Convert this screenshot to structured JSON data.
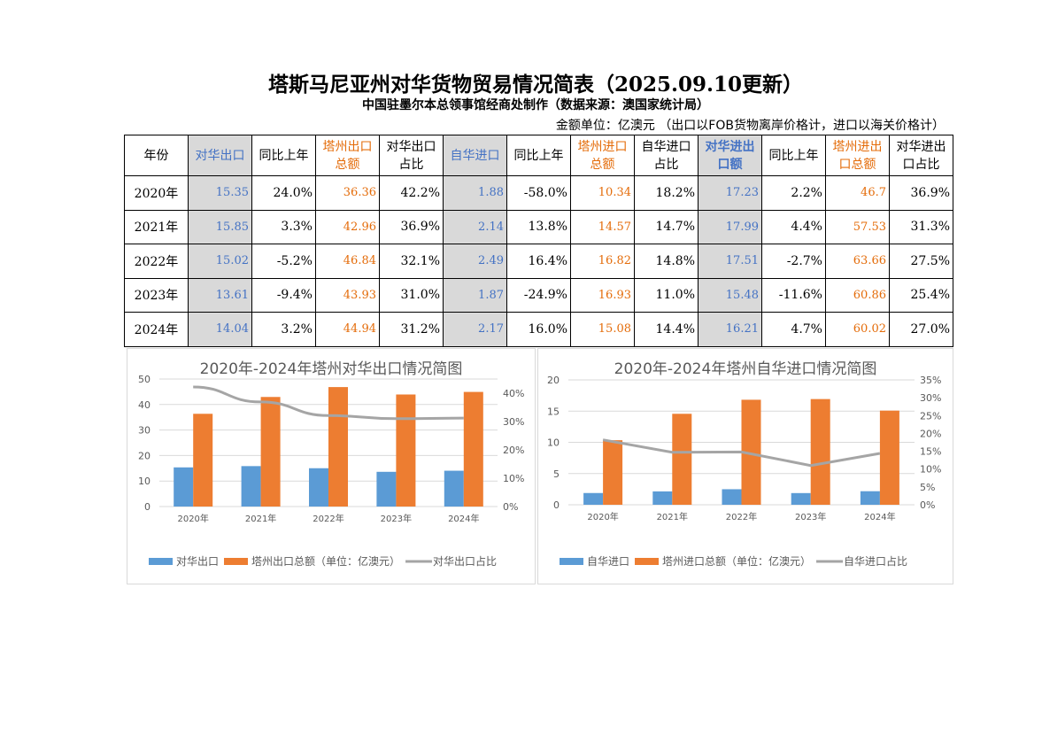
{
  "title": "塔斯马尼亚州对华货物贸易情况简表（2025.09.10更新）",
  "subtitle": "中国驻墨尔本总领事馆经商处制作（数据来源：澳国家统计局）",
  "unit_note": "金额单位：亿澳元 （出口以FOB货物离岸价格计，进口以海关价格计）",
  "table": {
    "headers": [
      "年份",
      "对华出口",
      "同比上年",
      "塔州出口总额",
      "对华出口占比",
      "自华进口",
      "同比上年",
      "塔州进口总额",
      "自华进口占比",
      "对华进出口额",
      "同比上年",
      "塔州进出口总额",
      "对华进出口占比"
    ],
    "rows": [
      [
        "2020年",
        "15.35",
        "24.0%",
        "36.36",
        "42.2%",
        "1.88",
        "-58.0%",
        "10.34",
        "18.2%",
        "17.23",
        "2.2%",
        "46.7",
        "36.9%"
      ],
      [
        "2021年",
        "15.85",
        "3.3%",
        "42.96",
        "36.9%",
        "2.14",
        "13.8%",
        "14.57",
        "14.7%",
        "17.99",
        "4.4%",
        "57.53",
        "31.3%"
      ],
      [
        "2022年",
        "15.02",
        "-5.2%",
        "46.84",
        "32.1%",
        "2.49",
        "16.4%",
        "16.82",
        "14.8%",
        "17.51",
        "-2.7%",
        "63.66",
        "27.5%"
      ],
      [
        "2023年",
        "13.61",
        "-9.4%",
        "43.93",
        "31.0%",
        "1.87",
        "-24.9%",
        "16.93",
        "11.0%",
        "15.48",
        "-11.6%",
        "60.86",
        "25.4%"
      ],
      [
        "2024年",
        "14.04",
        "3.2%",
        "44.94",
        "31.2%",
        "2.17",
        "16.0%",
        "15.08",
        "14.4%",
        "16.21",
        "4.7%",
        "60.02",
        "27.0%"
      ]
    ]
  },
  "colors": {
    "blue": "#5b9bd5",
    "orange": "#ed7d31",
    "gray": "#a5a5a5",
    "header_blue": "#4472c4",
    "header_orange": "#e46c0a",
    "shade": "#d9d9d9"
  },
  "chart_data": [
    {
      "type": "bar",
      "title": "2020年-2024年塔州对华出口情况简图",
      "categories": [
        "2020年",
        "2021年",
        "2022年",
        "2023年",
        "2024年"
      ],
      "series": [
        {
          "name": "对华出口",
          "kind": "bar",
          "axis": "left",
          "values": [
            15.35,
            15.85,
            15.02,
            13.61,
            14.04
          ]
        },
        {
          "name": "塔州出口总额（单位：亿澳元）",
          "kind": "bar",
          "axis": "right-bar",
          "values": [
            36.36,
            42.96,
            46.84,
            43.93,
            44.94
          ]
        },
        {
          "name": "对华出口占比",
          "kind": "line",
          "axis": "right",
          "values": [
            42.2,
            36.9,
            32.1,
            31.0,
            31.2
          ]
        }
      ],
      "ylim": [
        0,
        50
      ],
      "yticks": [
        0,
        10,
        20,
        30,
        40,
        50
      ],
      "y2lim": [
        0,
        45
      ],
      "y2ticks": [
        "0%",
        "10%",
        "20%",
        "30%",
        "40%"
      ],
      "y2tickvals": [
        0,
        10,
        20,
        30,
        40
      ],
      "legend": "bottom",
      "grid": true
    },
    {
      "type": "bar",
      "title": "2020年-2024年塔州自华进口情况简图",
      "categories": [
        "2020年",
        "2021年",
        "2022年",
        "2023年",
        "2024年"
      ],
      "series": [
        {
          "name": "自华进口",
          "kind": "bar",
          "values": [
            1.88,
            2.14,
            2.49,
            1.87,
            2.17
          ]
        },
        {
          "name": "塔州进口总额（单位：亿澳元）",
          "kind": "bar",
          "values": [
            10.34,
            14.57,
            16.82,
            16.93,
            15.08
          ]
        },
        {
          "name": "自华进口占比",
          "kind": "line",
          "values": [
            18.2,
            14.7,
            14.8,
            11.0,
            14.4
          ]
        }
      ],
      "ylim": [
        0,
        20
      ],
      "yticks": [
        0,
        5,
        10,
        15,
        20
      ],
      "y2lim": [
        0,
        35
      ],
      "y2ticks": [
        "0%",
        "5%",
        "10%",
        "15%",
        "20%",
        "25%",
        "30%",
        "35%"
      ],
      "y2tickvals": [
        0,
        5,
        10,
        15,
        20,
        25,
        30,
        35
      ],
      "legend": "bottom",
      "grid": true
    }
  ]
}
